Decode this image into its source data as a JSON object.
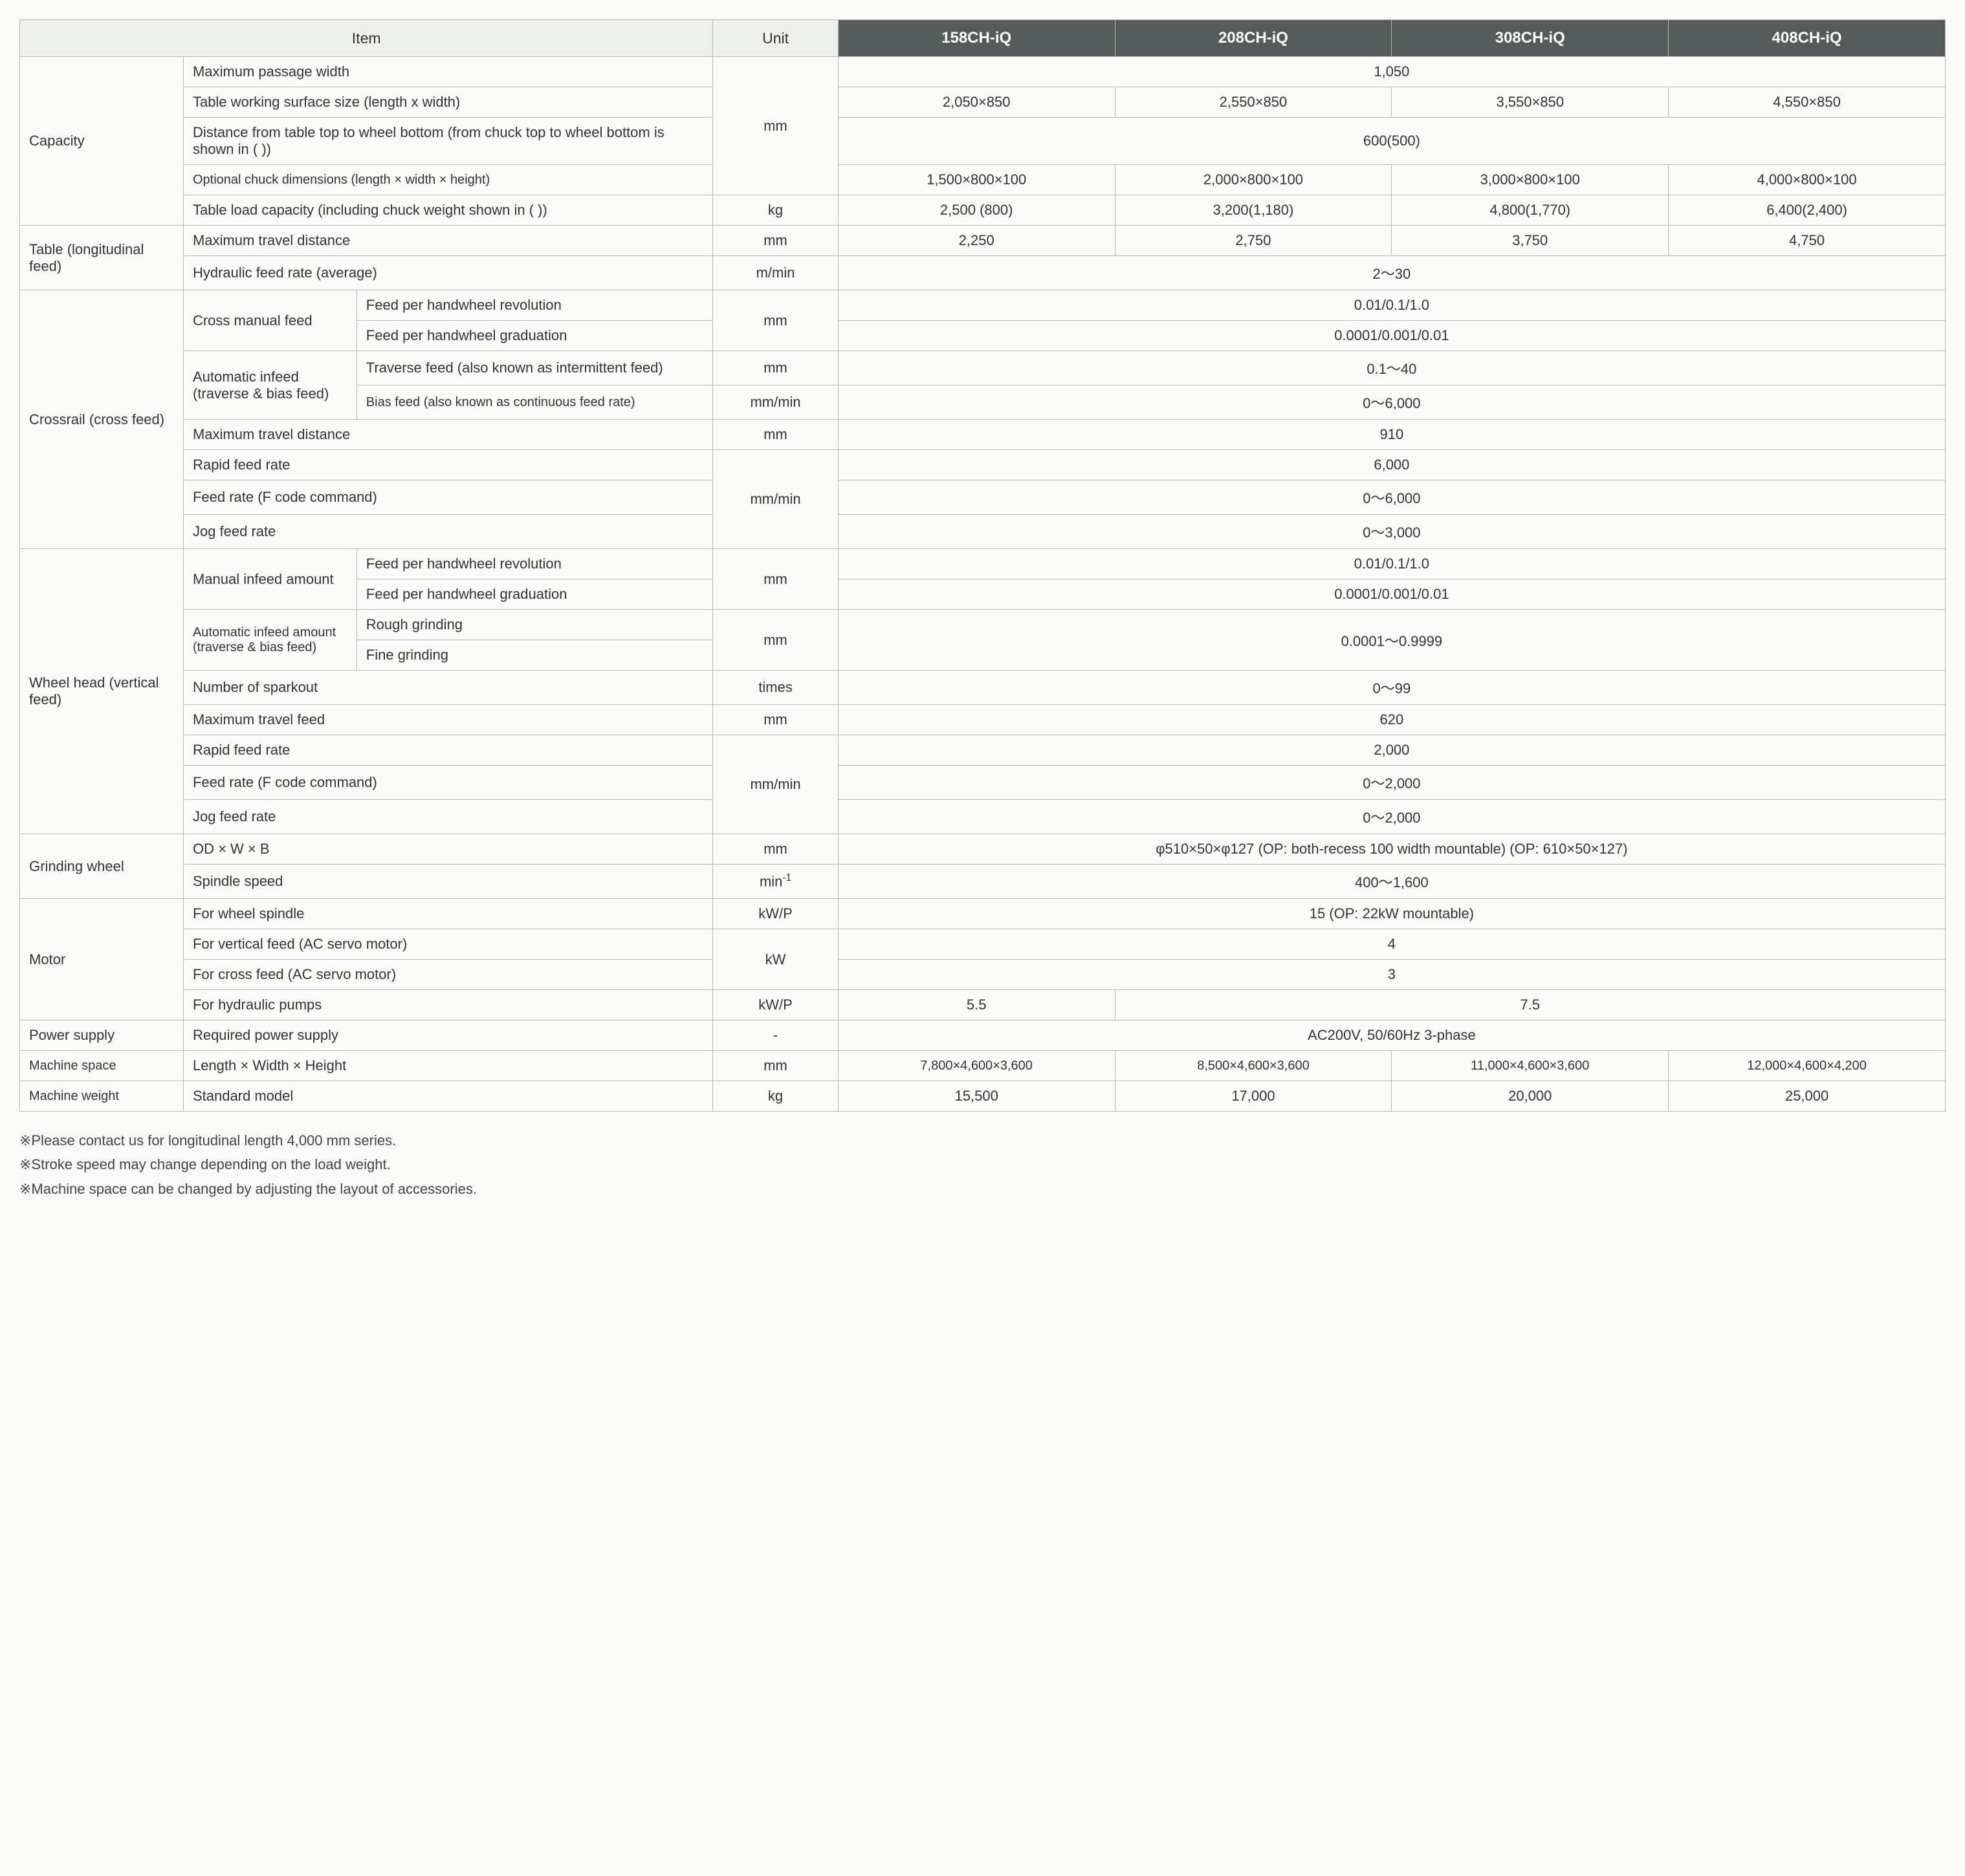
{
  "header": {
    "item": "Item",
    "unit": "Unit",
    "models": [
      "158CH-iQ",
      "208CH-iQ",
      "308CH-iQ",
      "408CH-iQ"
    ]
  },
  "capacity": {
    "label": "Capacity",
    "maxPassage": {
      "label": "Maximum passage width",
      "unit": "mm",
      "val": "1,050"
    },
    "tableWork": {
      "label": "Table working surface size (length x width)",
      "vals": [
        "2,050×850",
        "2,550×850",
        "3,550×850",
        "4,550×850"
      ]
    },
    "distance": {
      "label": "Distance from table top to wheel bottom (from chuck top to wheel bottom is shown in ( ))",
      "val": "600(500)"
    },
    "chuckDim": {
      "label": "Optional chuck dimensions (length × width × height)",
      "vals": [
        "1,500×800×100",
        "2,000×800×100",
        "3,000×800×100",
        "4,000×800×100"
      ]
    },
    "loadCap": {
      "label": "Table load capacity (including chuck weight shown in ( ))",
      "unit": "kg",
      "vals": [
        "2,500 (800)",
        "3,200(1,180)",
        "4,800(1,770)",
        "6,400(2,400)"
      ]
    }
  },
  "table": {
    "label": "Table (longitudinal feed)",
    "maxTravel": {
      "label": "Maximum travel distance",
      "unit": "mm",
      "vals": [
        "2,250",
        "2,750",
        "3,750",
        "4,750"
      ]
    },
    "hydraulic": {
      "label": "Hydraulic feed rate (average)",
      "unit": "m/min",
      "val": "2～30"
    }
  },
  "crossrail": {
    "label": "Crossrail (cross feed)",
    "crossManual": {
      "label": "Cross manual feed",
      "rev": {
        "label": "Feed per handwheel revolution",
        "unit": "mm",
        "val": "0.01/0.1/1.0"
      },
      "grad": {
        "label": "Feed per handwheel graduation",
        "val": "0.0001/0.001/0.01"
      }
    },
    "autoInfeed": {
      "label": "Automatic infeed (traverse & bias feed)",
      "trav": {
        "label": "Traverse feed (also known as intermittent feed)",
        "unit": "mm",
        "val": "0.1～40"
      },
      "bias": {
        "label": "Bias feed (also known as continuous feed rate)",
        "unit": "mm/min",
        "val": "0～6,000"
      }
    },
    "maxTravel": {
      "label": "Maximum travel distance",
      "unit": "mm",
      "val": "910"
    },
    "rapid": {
      "label": "Rapid feed rate",
      "unit": "mm/min",
      "val": "6,000"
    },
    "fcode": {
      "label": "Feed rate (F code command)",
      "val": "0～6,000"
    },
    "jog": {
      "label": "Jog feed rate",
      "val": "0～3,000"
    }
  },
  "wheelhead": {
    "label": "Wheel head (vertical feed)",
    "manualInfeed": {
      "label": "Manual infeed amount",
      "rev": {
        "label": "Feed per handwheel revolution",
        "unit": "mm",
        "val": "0.01/0.1/1.0"
      },
      "grad": {
        "label": "Feed per handwheel graduation",
        "val": "0.0001/0.001/0.01"
      }
    },
    "autoInfeed": {
      "label": "Automatic infeed amount (traverse & bias feed)",
      "rough": {
        "label": "Rough grinding",
        "unit": "mm",
        "val": "0.0001～0.9999"
      },
      "fine": {
        "label": "Fine grinding"
      }
    },
    "sparkout": {
      "label": "Number of sparkout",
      "unit": "times",
      "val": "0～99"
    },
    "maxTravel": {
      "label": "Maximum travel feed",
      "unit": "mm",
      "val": "620"
    },
    "rapid": {
      "label": "Rapid feed rate",
      "unit": "mm/min",
      "val": "2,000"
    },
    "fcode": {
      "label": "Feed rate (F code command)",
      "val": "0～2,000"
    },
    "jog": {
      "label": "Jog feed rate",
      "val": "0～2,000"
    }
  },
  "grindwheel": {
    "label": "Grinding wheel",
    "odwb": {
      "label": "OD × W × B",
      "unit": "mm",
      "val": "φ510×50×φ127 (OP: both-recess 100 width mountable) (OP: 610×50×127)"
    },
    "speed": {
      "label": "Spindle speed",
      "unit_html": "min<sup>-1</sup>",
      "val": "400～1,600"
    }
  },
  "motor": {
    "label": "Motor",
    "spindle": {
      "label": "For wheel spindle",
      "unit": "kW/P",
      "val": "15 (OP: 22kW mountable)"
    },
    "vertical": {
      "label": "For vertical feed (AC servo motor)",
      "unit": "kW",
      "val": "4"
    },
    "cross": {
      "label": "For cross feed (AC servo motor)",
      "val": "3"
    },
    "pumps": {
      "label": "For hydraulic pumps",
      "unit": "kW/P",
      "val1": "5.5",
      "val2": "7.5"
    }
  },
  "power": {
    "label": "Power supply",
    "req": {
      "label": "Required power supply",
      "unit": "-",
      "val": "AC200V, 50/60Hz 3-phase"
    }
  },
  "space": {
    "label": "Machine space",
    "dim": {
      "label": "Length × Width × Height",
      "unit": "mm",
      "vals": [
        "7,800×4,600×3,600",
        "8,500×4,600×3,600",
        "11,000×4,600×3,600",
        "12,000×4,600×4,200"
      ]
    }
  },
  "weight": {
    "label": "Machine weight",
    "std": {
      "label": "Standard model",
      "unit": "kg",
      "vals": [
        "15,500",
        "17,000",
        "20,000",
        "25,000"
      ]
    }
  },
  "notes": [
    "※Please contact us for longitudinal length 4,000 mm series.",
    "※Stroke speed may change depending on the load weight.",
    "※Machine space can be changed by adjusting the layout of accessories."
  ]
}
